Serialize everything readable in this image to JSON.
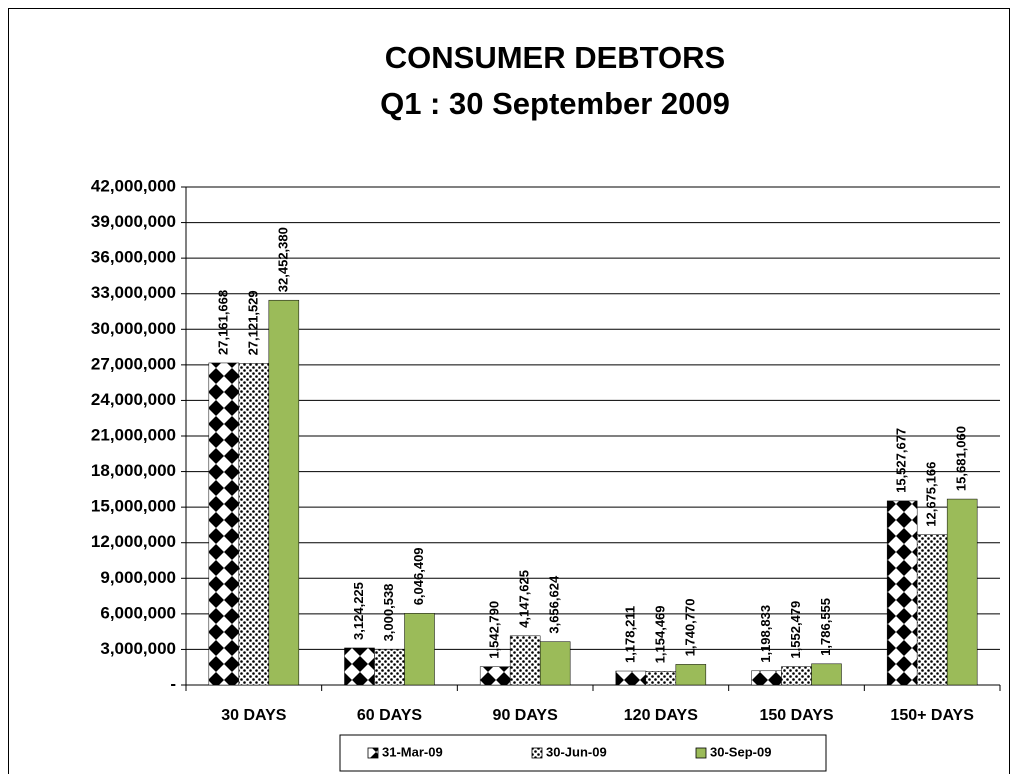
{
  "chart_data": {
    "type": "bar",
    "title": "CONSUMER DEBTORS",
    "subtitle": "Q1 : 30 September 2009",
    "categories": [
      "30 DAYS",
      "60 DAYS",
      "90 DAYS",
      "120 DAYS",
      "150 DAYS",
      "150+ DAYS"
    ],
    "series": [
      {
        "name": "31-Mar-09",
        "color": "#000000",
        "pattern": "diamond",
        "values": [
          27161668,
          3124225,
          1542790,
          1178211,
          1198833,
          15527677
        ],
        "value_labels": [
          "27,161,668",
          "3,124,225",
          "1,542,790",
          "1,178,211",
          "1,198,833",
          "15,527,677"
        ]
      },
      {
        "name": "30-Jun-09",
        "color": "#000000",
        "pattern": "dots",
        "values": [
          27121529,
          3000538,
          4147625,
          1154469,
          1552479,
          12675166
        ],
        "value_labels": [
          "27,121,529",
          "3,000,538",
          "4,147,625",
          "1,154,469",
          "1,552,479",
          "12,675,166"
        ]
      },
      {
        "name": "30-Sep-09",
        "color": "#9bbb59",
        "values": [
          32452380,
          6046409,
          3656624,
          1740770,
          1786555,
          15681060
        ],
        "value_labels": [
          "32,452,380",
          "6,046,409",
          "3,656,624",
          "1,740,770",
          "1,786,555",
          "15,681,060"
        ]
      }
    ],
    "ylim": [
      0,
      42000000
    ],
    "yticks": [
      {
        "value": 0,
        "label": "-"
      },
      {
        "value": 3000000,
        "label": "3,000,000"
      },
      {
        "value": 6000000,
        "label": "6,000,000"
      },
      {
        "value": 9000000,
        "label": "9,000,000"
      },
      {
        "value": 12000000,
        "label": "12,000,000"
      },
      {
        "value": 15000000,
        "label": "15,000,000"
      },
      {
        "value": 18000000,
        "label": "18,000,000"
      },
      {
        "value": 21000000,
        "label": "21,000,000"
      },
      {
        "value": 24000000,
        "label": "24,000,000"
      },
      {
        "value": 27000000,
        "label": "27,000,000"
      },
      {
        "value": 30000000,
        "label": "30,000,000"
      },
      {
        "value": 33000000,
        "label": "33,000,000"
      },
      {
        "value": 36000000,
        "label": "36,000,000"
      },
      {
        "value": 39000000,
        "label": "39,000,000"
      },
      {
        "value": 42000000,
        "label": "42,000,000"
      }
    ],
    "grid": true,
    "legend": "bottom"
  }
}
